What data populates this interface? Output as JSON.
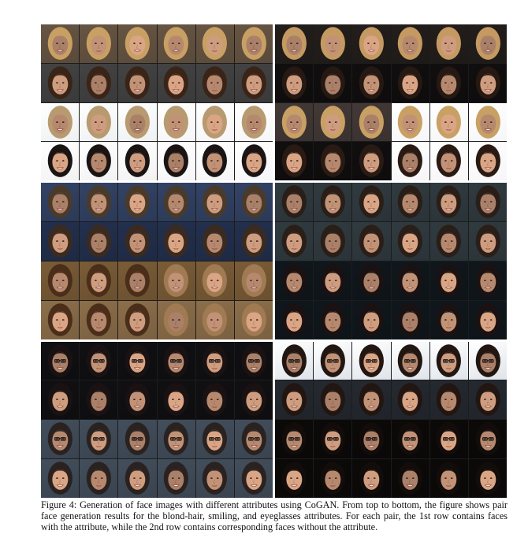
{
  "figure": {
    "caption": "Figure 4: Generation of face images with different attributes using CoGAN. From top to bottom, the figure shows pair face generation results for the blond-hair, smiling, and eyeglasses attributes. For each pair, the 1st row contains faces with the attribute, while the 2nd row contains corresponding faces without the attribute.",
    "attributes": [
      "blond-hair",
      "smiling",
      "eyeglasses"
    ],
    "grid": {
      "attribute_blocks": 3,
      "pair_columns": 2,
      "rows_per_pair": 2,
      "images_per_row": 6
    },
    "colors": {
      "background": "#ffffff",
      "caption_text": "#111111",
      "skin": "#c8977a",
      "blond_hair": "#c9a064",
      "dark_hair": "#221612",
      "light_bg": "#e8ecef",
      "dark_bg": "#0e0e10",
      "blue_bg": "#2c3a58"
    }
  }
}
